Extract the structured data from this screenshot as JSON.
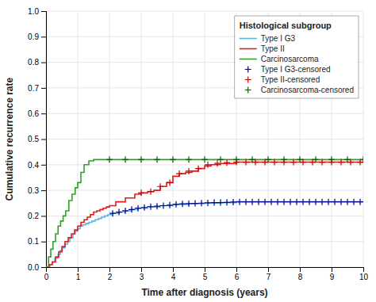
{
  "chart_data": {
    "type": "step",
    "xlabel": "Time after diagnosis (years)",
    "ylabel": "Cumulative recurrence rate",
    "legend_title": "Histological subgroup",
    "xlim": [
      0,
      10
    ],
    "ylim": [
      0.0,
      1.0
    ],
    "xticks": [
      0,
      1,
      2,
      3,
      4,
      5,
      6,
      7,
      8,
      9,
      10
    ],
    "yticks": [
      {
        "value": 0.0,
        "label": "0.0"
      },
      0.1,
      0.2,
      0.3,
      0.4,
      0.5,
      0.6,
      0.7,
      0.8,
      0.9,
      {
        "value": 1.0,
        "label": "1.0"
      }
    ],
    "grid": true,
    "legend": "upper right",
    "series": [
      {
        "name": "Type I G3",
        "type": "step",
        "color": "#56b4e9",
        "x": [
          0,
          0.12,
          0.2,
          0.28,
          0.38,
          0.45,
          0.52,
          0.6,
          0.68,
          0.75,
          0.85,
          0.92,
          1.0,
          1.08,
          1.15,
          1.25,
          1.35,
          1.45,
          1.55,
          1.65,
          1.75,
          1.85,
          1.95,
          2.1,
          2.3,
          2.5,
          2.7,
          2.9,
          3.2,
          3.6,
          4.0,
          4.5,
          5.0,
          5.5,
          6.0,
          10.0
        ],
        "values": [
          0.0,
          0.01,
          0.02,
          0.035,
          0.05,
          0.065,
          0.075,
          0.09,
          0.1,
          0.115,
          0.13,
          0.14,
          0.15,
          0.16,
          0.165,
          0.17,
          0.175,
          0.18,
          0.185,
          0.19,
          0.195,
          0.2,
          0.205,
          0.21,
          0.215,
          0.22,
          0.225,
          0.23,
          0.235,
          0.24,
          0.245,
          0.248,
          0.25,
          0.252,
          0.255,
          0.255
        ]
      },
      {
        "name": "Type II",
        "type": "step",
        "color": "#e41a1c",
        "x": [
          0,
          0.1,
          0.2,
          0.3,
          0.4,
          0.5,
          0.6,
          0.7,
          0.8,
          0.9,
          1.0,
          1.1,
          1.2,
          1.3,
          1.4,
          1.5,
          1.6,
          1.7,
          1.8,
          1.9,
          2.0,
          2.2,
          2.5,
          2.8,
          3.0,
          3.2,
          3.4,
          3.6,
          3.8,
          4.0,
          4.2,
          4.4,
          4.6,
          4.8,
          5.0,
          5.2,
          5.5,
          6.0,
          10.0
        ],
        "values": [
          0.0,
          0.01,
          0.02,
          0.04,
          0.06,
          0.08,
          0.1,
          0.115,
          0.13,
          0.145,
          0.16,
          0.175,
          0.185,
          0.195,
          0.205,
          0.215,
          0.22,
          0.225,
          0.23,
          0.235,
          0.24,
          0.255,
          0.27,
          0.285,
          0.29,
          0.295,
          0.3,
          0.315,
          0.33,
          0.355,
          0.365,
          0.37,
          0.375,
          0.385,
          0.395,
          0.4,
          0.405,
          0.41,
          0.41
        ]
      },
      {
        "name": "Carcinosarcoma",
        "type": "step",
        "color": "#33a02c",
        "x": [
          0,
          0.08,
          0.15,
          0.22,
          0.3,
          0.38,
          0.46,
          0.54,
          0.62,
          0.72,
          0.82,
          0.92,
          1.0,
          1.1,
          1.2,
          1.35,
          1.5,
          1.7,
          2.0,
          10.0
        ],
        "values": [
          0.0,
          0.04,
          0.07,
          0.1,
          0.13,
          0.16,
          0.18,
          0.2,
          0.22,
          0.26,
          0.285,
          0.31,
          0.33,
          0.37,
          0.4,
          0.415,
          0.42,
          0.42,
          0.42,
          0.42
        ]
      },
      {
        "name": "Type I G3-censored",
        "type": "scatter",
        "marker": "plus",
        "color": "#00008b",
        "x": [
          2.1,
          2.3,
          2.5,
          2.7,
          2.9,
          3.1,
          3.3,
          3.5,
          3.7,
          3.9,
          4.1,
          4.3,
          4.5,
          4.7,
          4.9,
          5.1,
          5.3,
          5.5,
          5.7,
          5.9,
          6.1,
          6.3,
          6.5,
          6.7,
          6.9,
          7.1,
          7.3,
          7.5,
          7.7,
          7.9,
          8.1,
          8.3,
          8.5,
          8.7,
          8.9,
          9.1,
          9.3,
          9.5,
          9.7,
          9.9
        ],
        "values": [
          0.21,
          0.215,
          0.22,
          0.225,
          0.23,
          0.233,
          0.236,
          0.238,
          0.24,
          0.242,
          0.245,
          0.247,
          0.248,
          0.249,
          0.25,
          0.251,
          0.252,
          0.252,
          0.253,
          0.254,
          0.255,
          0.255,
          0.255,
          0.255,
          0.255,
          0.255,
          0.255,
          0.255,
          0.255,
          0.255,
          0.255,
          0.255,
          0.255,
          0.255,
          0.255,
          0.255,
          0.255,
          0.255,
          0.255,
          0.255
        ]
      },
      {
        "name": "Type II-censored",
        "type": "scatter",
        "marker": "plus",
        "color": "#cc0000",
        "x": [
          3.0,
          3.3,
          3.6,
          3.9,
          4.2,
          4.5,
          4.8,
          5.1,
          5.4,
          5.7,
          6.0,
          6.3,
          6.6,
          6.9,
          7.2,
          7.5,
          7.8,
          8.1,
          8.4,
          8.7,
          9.0,
          9.3,
          9.6,
          9.9
        ],
        "values": [
          0.29,
          0.295,
          0.315,
          0.33,
          0.365,
          0.375,
          0.385,
          0.4,
          0.405,
          0.408,
          0.41,
          0.41,
          0.41,
          0.41,
          0.41,
          0.41,
          0.41,
          0.41,
          0.41,
          0.41,
          0.41,
          0.41,
          0.41,
          0.41
        ]
      },
      {
        "name": "Carcinosarcoma-censored",
        "type": "scatter",
        "marker": "plus",
        "color": "#006400",
        "x": [
          2.0,
          2.5,
          3.0,
          3.5,
          4.0,
          4.5,
          5.0,
          5.5,
          6.0,
          6.5,
          7.0,
          7.5,
          8.0,
          8.5,
          9.0,
          9.5,
          10.0
        ],
        "values": [
          0.42,
          0.42,
          0.42,
          0.42,
          0.42,
          0.42,
          0.42,
          0.42,
          0.42,
          0.42,
          0.42,
          0.42,
          0.42,
          0.42,
          0.42,
          0.42,
          0.42
        ]
      }
    ]
  }
}
